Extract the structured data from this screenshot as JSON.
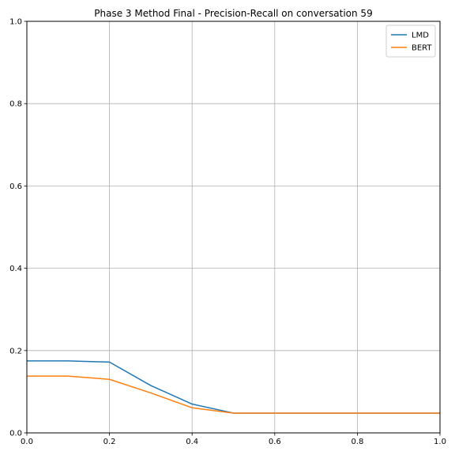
{
  "chart_data": {
    "type": "line",
    "title": "Phase 3 Method Final - Precision-Recall on conversation 59",
    "xlabel": "",
    "ylabel": "",
    "xlim": [
      0,
      1
    ],
    "ylim": [
      0,
      1
    ],
    "grid": true,
    "legend_position": "top-right",
    "x_ticks": [
      "0.0",
      "0.2",
      "0.4",
      "0.6",
      "0.8",
      "1.0"
    ],
    "y_ticks": [
      "0.0",
      "0.2",
      "0.4",
      "0.6",
      "0.8",
      "1.0"
    ],
    "x": [
      0.0,
      0.1,
      0.2,
      0.3,
      0.4,
      0.5,
      0.6,
      0.7,
      0.8,
      0.9,
      1.0
    ],
    "series": [
      {
        "name": "LMD",
        "color": "#1f77b4",
        "values": [
          0.175,
          0.175,
          0.172,
          0.115,
          0.07,
          0.048,
          0.048,
          0.048,
          0.048,
          0.048,
          0.048
        ]
      },
      {
        "name": "BERT",
        "color": "#ff7f0e",
        "values": [
          0.138,
          0.138,
          0.13,
          0.097,
          0.061,
          0.048,
          0.048,
          0.048,
          0.048,
          0.048,
          0.048
        ]
      }
    ]
  }
}
